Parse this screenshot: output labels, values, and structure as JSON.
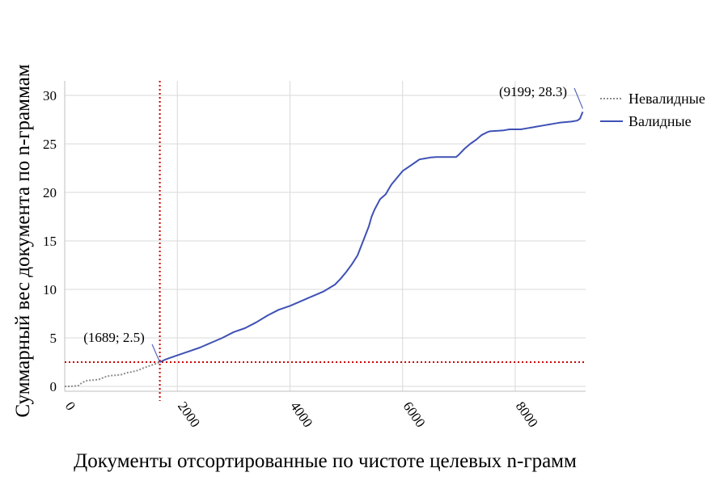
{
  "chart_data": {
    "type": "line",
    "title": "",
    "xlabel": "Документы отсортированные по чистоте целевых n-грамм",
    "ylabel": "Суммарный вес документа по n-граммам",
    "xlim": [
      0,
      9250
    ],
    "ylim": [
      -0.5,
      31.5
    ],
    "xticks": [
      0,
      2000,
      4000,
      6000,
      8000
    ],
    "yticks": [
      0,
      5,
      10,
      15,
      20,
      25,
      30
    ],
    "grid": true,
    "legend_position": "top-right",
    "series": [
      {
        "name": "Невалидные",
        "color": "#8c8c8c",
        "style": "dotted",
        "x": [
          0,
          100,
          200,
          250,
          300,
          350,
          400,
          500,
          600,
          650,
          700,
          800,
          900,
          1000,
          1100,
          1200,
          1300,
          1400,
          1500,
          1600,
          1689
        ],
        "y": [
          0,
          0,
          0.05,
          0.1,
          0.35,
          0.5,
          0.6,
          0.65,
          0.7,
          0.8,
          0.95,
          1.1,
          1.15,
          1.2,
          1.4,
          1.5,
          1.65,
          1.9,
          2.1,
          2.3,
          2.5
        ]
      },
      {
        "name": "Валидные",
        "color": "#3f51b5",
        "style": "solid",
        "x": [
          1689,
          1800,
          2000,
          2200,
          2400,
          2600,
          2800,
          3000,
          3200,
          3400,
          3600,
          3800,
          4000,
          4200,
          4400,
          4600,
          4800,
          4900,
          5000,
          5100,
          5200,
          5300,
          5400,
          5450,
          5500,
          5600,
          5700,
          5800,
          5900,
          6000,
          6100,
          6200,
          6300,
          6400,
          6500,
          6600,
          6700,
          6800,
          6950,
          7000,
          7100,
          7200,
          7300,
          7400,
          7500,
          7550,
          7700,
          7800,
          7900,
          8000,
          8100,
          8200,
          8300,
          8400,
          8500,
          8600,
          8700,
          8800,
          8900,
          9000,
          9100,
          9150,
          9199
        ],
        "y": [
          2.5,
          2.8,
          3.2,
          3.6,
          4.0,
          4.5,
          5.0,
          5.6,
          6.0,
          6.6,
          7.3,
          7.9,
          8.3,
          8.8,
          9.3,
          9.8,
          10.5,
          11.1,
          11.8,
          12.6,
          13.5,
          15.0,
          16.5,
          17.5,
          18.2,
          19.3,
          19.8,
          20.8,
          21.5,
          22.2,
          22.6,
          23.0,
          23.4,
          23.5,
          23.6,
          23.65,
          23.65,
          23.65,
          23.65,
          23.9,
          24.5,
          25.0,
          25.4,
          25.9,
          26.2,
          26.3,
          26.35,
          26.4,
          26.5,
          26.5,
          26.5,
          26.6,
          26.7,
          26.8,
          26.9,
          27.0,
          27.1,
          27.2,
          27.25,
          27.3,
          27.4,
          27.6,
          28.3
        ]
      }
    ],
    "reference_lines": [
      {
        "orientation": "vertical",
        "value": 1689,
        "color": "#cc0000",
        "style": "dotted"
      },
      {
        "orientation": "horizontal",
        "value": 2.5,
        "color": "#cc0000",
        "style": "dotted"
      }
    ],
    "annotations": [
      {
        "text": "(1689; 2.5)",
        "x": 1689,
        "y": 2.5
      },
      {
        "text": "(9199; 28.3)",
        "x": 9199,
        "y": 28.3
      }
    ]
  }
}
